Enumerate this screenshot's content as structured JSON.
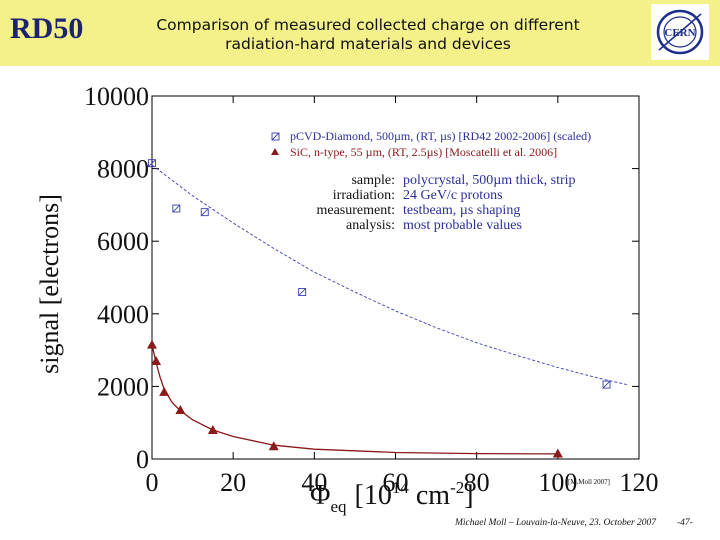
{
  "header": {
    "badge": "RD50",
    "title_line1": "Comparison of measured collected charge on different",
    "title_line2": "radiation-hard materials and devices",
    "logo_text": "CERN"
  },
  "colors": {
    "header_bg": "#f4f08a",
    "diamond": "#3a3fb0",
    "sic": "#8b1a1a",
    "info_text": "#2a2f9a"
  },
  "chart_data": {
    "type": "scatter",
    "xlabel_main": "Φ",
    "xlabel_sub": "eq",
    "xlabel_unit_a": "[10",
    "xlabel_exp1": "14",
    "xlabel_unit_b": " cm",
    "xlabel_exp2": "-2",
    "xlabel_unit_c": "]",
    "ylabel": "signal [electrons]",
    "xlim": [
      0,
      120
    ],
    "ylim": [
      0,
      10000
    ],
    "xticks": [
      "0",
      "20",
      "40",
      "60",
      "80",
      "100",
      "120"
    ],
    "yticks": [
      "0",
      "2000",
      "4000",
      "6000",
      "8000",
      "10000"
    ],
    "grid": false,
    "legend_position": "top-right",
    "series": [
      {
        "name": "pCVD-Diamond, 500µm, (RT, µs) [RD42 2002-2006] (scaled)",
        "marker": "square-x",
        "x": [
          0,
          6,
          13,
          37,
          112
        ],
        "y": [
          8150,
          6900,
          6800,
          4600,
          2050
        ],
        "fit": {
          "x": [
            0,
            10,
            20,
            30,
            40,
            50,
            60,
            70,
            80,
            90,
            100,
            110,
            117
          ],
          "y": [
            8100,
            7250,
            6500,
            5800,
            5150,
            4600,
            4080,
            3620,
            3200,
            2850,
            2520,
            2230,
            2050
          ]
        }
      },
      {
        "name": "SiC, n-type, 55 µm, (RT, 2.5µs) [Moscatelli et al. 2006]",
        "marker": "triangle",
        "x": [
          0,
          1,
          3,
          7,
          15,
          30,
          100
        ],
        "y": [
          3150,
          2700,
          1850,
          1350,
          800,
          350,
          150
        ],
        "fit": {
          "x": [
            0,
            1,
            2,
            3,
            5,
            7,
            10,
            15,
            20,
            30,
            40,
            60,
            80,
            100
          ],
          "y": [
            3150,
            2650,
            2250,
            1920,
            1550,
            1330,
            1080,
            800,
            620,
            380,
            270,
            180,
            150,
            140
          ]
        }
      }
    ],
    "info": [
      {
        "label": "sample:",
        "value": "polycrystal, 500µm thick, strip"
      },
      {
        "label": "irradiation:",
        "value": "24 GeV/c protons"
      },
      {
        "label": "measurement:",
        "value": "testbeam, µs shaping"
      },
      {
        "label": "analysis:",
        "value": "most probable values"
      }
    ],
    "credit": "[M.Moll 2007]"
  },
  "footer": {
    "text": "Michael Moll – Louvain-la-Neuve, 23. October 2007",
    "page": "-47-"
  }
}
